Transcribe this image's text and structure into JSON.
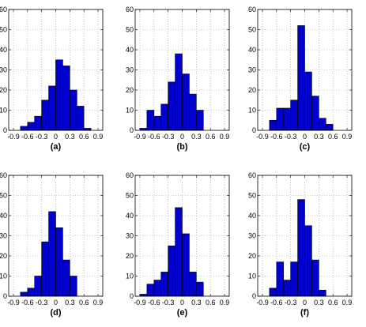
{
  "chart_data": [
    {
      "type": "bar",
      "label": "(a)",
      "bin_edges": [
        -0.9,
        -0.75,
        -0.6,
        -0.45,
        -0.3,
        -0.15,
        0.0,
        0.15,
        0.3,
        0.45,
        0.6,
        0.75
      ],
      "values": [
        0,
        2,
        4,
        7,
        15,
        22,
        35,
        32,
        20,
        12,
        1
      ],
      "xlim": [
        -1.0,
        1.0
      ],
      "ylim": [
        0,
        60
      ],
      "xticks": [
        "-0.9",
        "-0.6",
        "-0.3",
        "0",
        "0.3",
        "0.6",
        "0.9"
      ],
      "yticks": [
        "0",
        "10",
        "20",
        "30",
        "40",
        "50",
        "60"
      ],
      "grid": true,
      "bar_color": "#0000cc"
    },
    {
      "type": "bar",
      "label": "(b)",
      "bin_edges": [
        -0.9,
        -0.75,
        -0.6,
        -0.45,
        -0.3,
        -0.15,
        0.0,
        0.15,
        0.3,
        0.45,
        0.6
      ],
      "values": [
        1,
        10,
        7,
        13,
        24,
        38,
        28,
        18,
        10,
        0
      ],
      "xlim": [
        -1.0,
        1.0
      ],
      "ylim": [
        0,
        60
      ],
      "xticks": [
        "-0.9",
        "-0.6",
        "-0.3",
        "0",
        "0.3",
        "0.6",
        "0.9"
      ],
      "yticks": [
        "0",
        "10",
        "20",
        "30",
        "40",
        "50",
        "60"
      ],
      "grid": true,
      "bar_color": "#0000cc"
    },
    {
      "type": "bar",
      "label": "(c)",
      "bin_edges": [
        -0.75,
        -0.6,
        -0.45,
        -0.3,
        -0.15,
        0.0,
        0.15,
        0.3,
        0.45,
        0.6,
        0.75
      ],
      "values": [
        5,
        11,
        11,
        15,
        52,
        29,
        17,
        6,
        3,
        0
      ],
      "xlim": [
        -1.0,
        1.0
      ],
      "ylim": [
        0,
        60
      ],
      "xticks": [
        "-0.9",
        "-0.6",
        "-0.3",
        "0",
        "0.3",
        "0.6",
        "0.9"
      ],
      "yticks": [
        "0",
        "10",
        "20",
        "30",
        "40",
        "50",
        "60"
      ],
      "grid": true,
      "bar_color": "#0000cc"
    },
    {
      "type": "bar",
      "label": "(d)",
      "bin_edges": [
        -0.75,
        -0.6,
        -0.45,
        -0.3,
        -0.15,
        0.0,
        0.15,
        0.3,
        0.45,
        0.6
      ],
      "values": [
        2,
        4,
        10,
        27,
        42,
        34,
        18,
        10,
        0
      ],
      "xlim": [
        -1.0,
        1.0
      ],
      "ylim": [
        0,
        60
      ],
      "xticks": [
        "-0.9",
        "-0.6",
        "-0.3",
        "0",
        "0.3",
        "0.6",
        "0.9"
      ],
      "yticks": [
        "0",
        "10",
        "20",
        "30",
        "40",
        "50",
        "60"
      ],
      "grid": true,
      "bar_color": "#0000cc"
    },
    {
      "type": "bar",
      "label": "(e)",
      "bin_edges": [
        -0.9,
        -0.75,
        -0.6,
        -0.45,
        -0.3,
        -0.15,
        0.0,
        0.15,
        0.3,
        0.45,
        0.6
      ],
      "values": [
        1,
        6,
        8,
        12,
        25,
        44,
        31,
        12,
        7,
        0
      ],
      "xlim": [
        -1.0,
        1.0
      ],
      "ylim": [
        0,
        60
      ],
      "xticks": [
        "-0.9",
        "-0.6",
        "-0.3",
        "0",
        "0.3",
        "0.6",
        "0.9"
      ],
      "yticks": [
        "0",
        "10",
        "20",
        "30",
        "40",
        "50",
        "60"
      ],
      "grid": true,
      "bar_color": "#0000cc"
    },
    {
      "type": "bar",
      "label": "(f)",
      "bin_edges": [
        -0.75,
        -0.6,
        -0.45,
        -0.3,
        -0.15,
        0.0,
        0.15,
        0.3,
        0.45,
        0.6
      ],
      "values": [
        4,
        17,
        8,
        17,
        48,
        35,
        18,
        3,
        0
      ],
      "xlim": [
        -1.0,
        1.0
      ],
      "ylim": [
        0,
        60
      ],
      "xticks": [
        "-0.9",
        "-0.6",
        "-0.3",
        "0",
        "0.3",
        "0.6",
        "0.9"
      ],
      "yticks": [
        "0",
        "10",
        "20",
        "30",
        "40",
        "50",
        "60"
      ],
      "grid": true,
      "bar_color": "#0000cc"
    }
  ]
}
